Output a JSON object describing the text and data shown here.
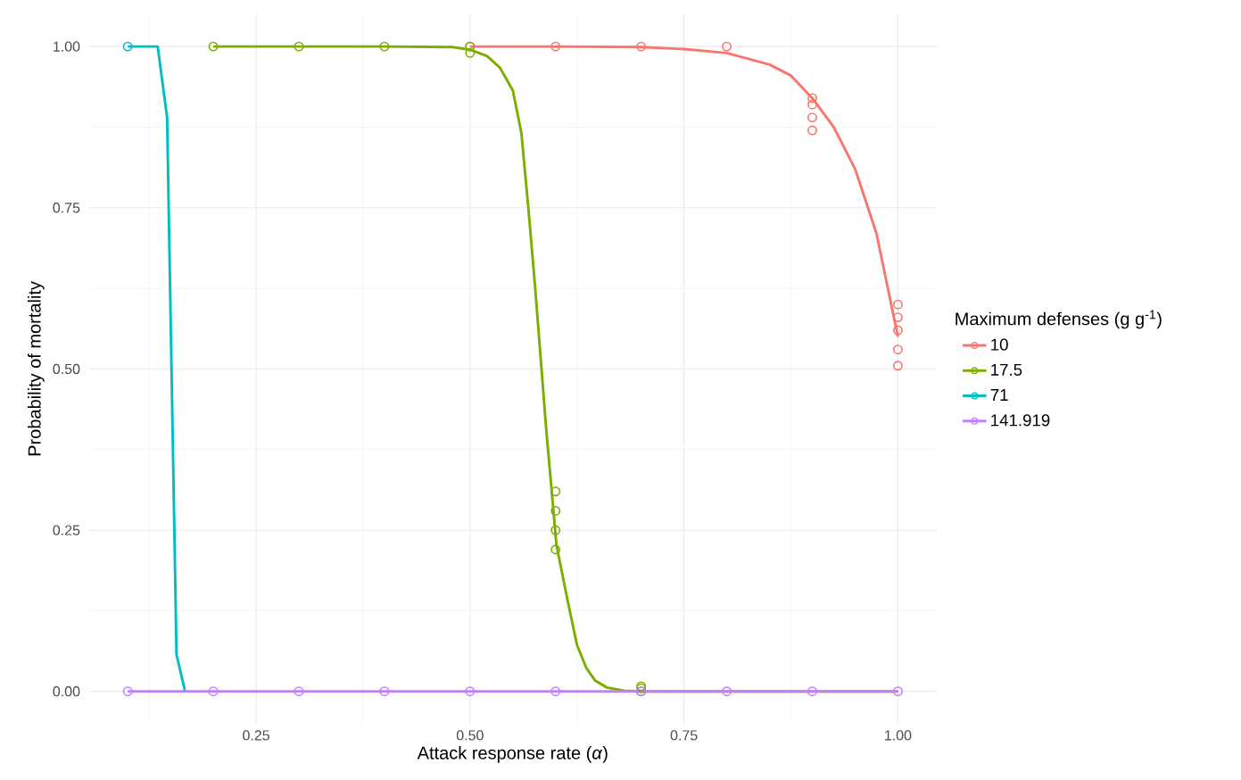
{
  "chart_data": {
    "type": "line",
    "xlabel": "Attack response rate (*α*)",
    "ylabel": "Probability of mortality",
    "legend_title": "Maximum defenses (g g$^{-1}$)",
    "xlim": [
      0.055,
      1.045
    ],
    "ylim": [
      -0.05,
      1.05
    ],
    "xticks": [
      {
        "value": 0.25,
        "label": "0.25"
      },
      {
        "value": 0.5,
        "label": "0.50"
      },
      {
        "value": 0.75,
        "label": "0.75"
      },
      {
        "value": 1.0,
        "label": "1.00"
      }
    ],
    "yticks": [
      {
        "value": 0,
        "label": "0.00"
      },
      {
        "value": 0.25,
        "label": "0.25"
      },
      {
        "value": 0.5,
        "label": "0.50"
      },
      {
        "value": 0.75,
        "label": "0.75"
      },
      {
        "value": 1.0,
        "label": "1.00"
      }
    ],
    "grid": true,
    "legend": "right",
    "marker": "circle",
    "series": [
      {
        "type": "scatter",
        "color": "#f8766d",
        "x": [
          0.5,
          0.6,
          0.7,
          0.8,
          0.9,
          0.9,
          0.9,
          0.9,
          1.0,
          1.0,
          1.0,
          1.0,
          1.0
        ],
        "values": [
          1,
          1,
          1,
          1,
          0.87,
          0.89,
          0.91,
          0.92,
          0.505,
          0.53,
          0.56,
          0.58,
          0.6
        ]
      },
      {
        "type": "scatter",
        "color": "#7cae00",
        "x": [
          0.2,
          0.3,
          0.4,
          0.5,
          0.5,
          0.6,
          0.6,
          0.6,
          0.6,
          0.7,
          0.7,
          0.7
        ],
        "values": [
          1,
          1,
          1,
          1,
          0.99,
          0.22,
          0.25,
          0.28,
          0.31,
          0,
          0.005,
          0.008
        ]
      },
      {
        "type": "scatter",
        "color": "#00bfc4",
        "x": [
          0.1
        ],
        "values": [
          1
        ]
      },
      {
        "type": "scatter",
        "color": "#c77cff",
        "x": [
          0.1,
          0.2,
          0.3,
          0.4,
          0.5,
          0.6,
          0.7,
          0.8,
          0.9,
          1.0
        ],
        "values": [
          0,
          0,
          0,
          0,
          0,
          0,
          0,
          0,
          0,
          0
        ]
      },
      {
        "name": "10",
        "marker": "none",
        "color": "#f8766d",
        "x": [
          0.5,
          0.6,
          0.7,
          0.75,
          0.8,
          0.85,
          0.875,
          0.9,
          0.925,
          0.95,
          0.975,
          1.0
        ],
        "values": [
          1,
          1,
          0.999,
          0.996,
          0.99,
          0.972,
          0.955,
          0.92,
          0.875,
          0.81,
          0.71,
          0.55
        ]
      },
      {
        "name": "17.5",
        "marker": "none",
        "color": "#7cae00",
        "x": [
          0.2,
          0.4,
          0.48,
          0.5,
          0.52,
          0.535,
          0.55,
          0.56,
          0.568,
          0.576,
          0.589,
          0.601,
          0.614,
          0.625,
          0.636,
          0.646,
          0.66,
          0.68,
          0.7,
          0.8,
          1.0
        ],
        "values": [
          1,
          1,
          0.999,
          0.995,
          0.985,
          0.967,
          0.932,
          0.866,
          0.752,
          0.628,
          0.407,
          0.227,
          0.141,
          0.072,
          0.036,
          0.017,
          0.006,
          0.001,
          0,
          0,
          0
        ]
      },
      {
        "name": "71",
        "marker": "none",
        "color": "#00bfc4",
        "x": [
          0.1,
          0.135,
          0.146,
          0.157,
          0.167
        ],
        "values": [
          1,
          1,
          0.89,
          0.057,
          0
        ]
      },
      {
        "name": "141.919",
        "marker": "none",
        "color": "#c77cff",
        "x": [
          0.1,
          0.2,
          0.3,
          0.4,
          0.5,
          0.6,
          0.7,
          0.8,
          0.9,
          1.0
        ],
        "values": [
          0,
          0,
          0,
          0,
          0,
          0,
          0,
          0,
          0,
          0
        ]
      }
    ]
  }
}
